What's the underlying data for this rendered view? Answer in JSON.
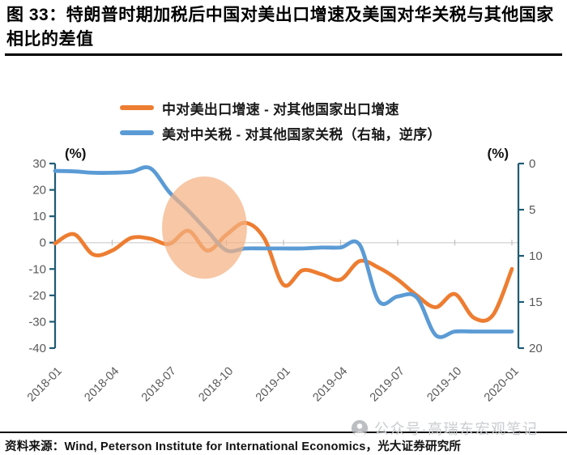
{
  "title": "图 33：特朗普时期加税后中国对美出口增速及美国对华关税与其他国家相比的差值",
  "source_note": "资料来源：Wind, Peterson Institute for International Economics，光大证券研究所",
  "watermark": {
    "text": "公众号·高瑞东宏观笔记",
    "icon": "official-account-logo"
  },
  "colors": {
    "export_line": "#ED7D31",
    "tariff_line": "#5B9BD5",
    "axis": "#1F5B73",
    "zero_gridline": "#D9D9D9",
    "tick_text": "#595959",
    "highlight": "#F4B183",
    "title_text": "#000000",
    "watermark_text": "#C9CCCF"
  },
  "chart_data": {
    "type": "line",
    "x": [
      "2018-01",
      "2018-02",
      "2018-03",
      "2018-04",
      "2018-05",
      "2018-06",
      "2018-07",
      "2018-08",
      "2018-09",
      "2018-10",
      "2018-11",
      "2018-12",
      "2019-01",
      "2019-02",
      "2019-03",
      "2019-04",
      "2019-05",
      "2019-06",
      "2019-07",
      "2019-08",
      "2019-09",
      "2019-10",
      "2019-11",
      "2019-12",
      "2020-01"
    ],
    "x_tick_labels": [
      "2018-01",
      "2018-04",
      "2018-07",
      "2018-10",
      "2019-01",
      "2019-04",
      "2019-07",
      "2019-10",
      "2020-01"
    ],
    "series": [
      {
        "name": "中对美出口增速 - 对其他国家出口增速",
        "axis": "left",
        "color": "#ED7D31",
        "values": [
          -0.3,
          3.2,
          -4.5,
          -3,
          1.8,
          1.5,
          -0.5,
          4.5,
          -3,
          3,
          7.5,
          1.5,
          -16,
          -10.5,
          -12,
          -14,
          -7,
          -9.5,
          -14,
          -20,
          -24.5,
          -19.5,
          -28.5,
          -27.5,
          -10
        ]
      },
      {
        "name": "美对中关税 - 对其他国家关税（右轴，逆序）",
        "axis": "right",
        "color": "#5B9BD5",
        "values": [
          0.8,
          0.85,
          1.0,
          1.0,
          0.9,
          0.5,
          3.1,
          5.1,
          7.3,
          9.4,
          9.2,
          9.2,
          9.2,
          9.2,
          9.1,
          9.1,
          8.8,
          14.9,
          14.4,
          14.5,
          18.6,
          18.2,
          18.2,
          18.2,
          18.2
        ]
      }
    ],
    "left_axis": {
      "label": "(%)",
      "min": -40,
      "max": 30,
      "ticks": [
        30,
        20,
        10,
        0,
        -10,
        -20,
        -30,
        -40
      ]
    },
    "right_axis": {
      "label": "(%)",
      "min": 0,
      "max": 20,
      "ticks": [
        0,
        5,
        10,
        15,
        20
      ],
      "reversed": true
    },
    "grid": "zero-line-only",
    "legend_position": "top",
    "highlight_ellipse": {
      "cx_month_index": 7.85,
      "cy_left_value": 5.7,
      "rx_months": 2.23,
      "ry_left_units": 19.4,
      "color": "#F4B183",
      "opacity": 0.72
    }
  }
}
